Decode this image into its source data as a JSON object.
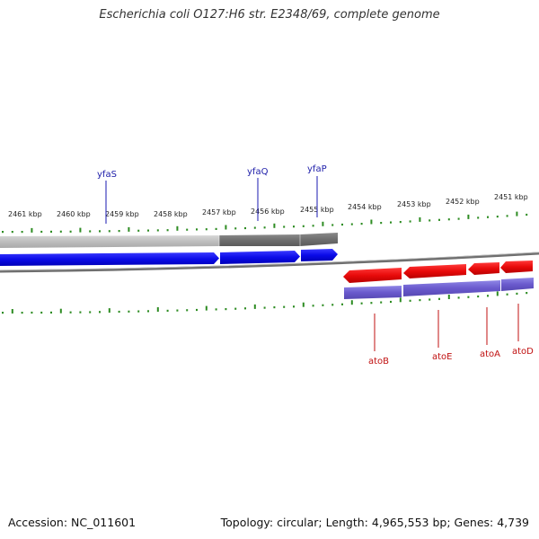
{
  "title": "Escherichia coli O127:H6 str. E2348/69, complete genome",
  "footer": {
    "accession": "Accession: NC_011601",
    "topology": "Topology: circular; Length: 4,965,553 bp; Genes: 4,739"
  },
  "map": {
    "topology": "circular",
    "colors": {
      "forward_gene": "#0b0be8",
      "reverse_gene": "#e80a0a",
      "forward_label": "#2020aa",
      "reverse_label": "#c01010",
      "tick": "#2d8c22",
      "backbone": "#777777",
      "orf_forward": "#8a8a8a",
      "orf_reverse": "#6a5acd"
    },
    "scale_labels": [
      "2461 kbp",
      "2460 kbp",
      "2459 kbp",
      "2458 kbp",
      "2457 kbp",
      "2456 kbp",
      "2455 kbp",
      "2454 kbp",
      "2453 kbp",
      "2452 kbp",
      "2451 kbp"
    ],
    "forward_genes": [
      {
        "name": "yfaS",
        "color": "#0b0be8"
      },
      {
        "name": "yfaQ",
        "color": "#0b0be8"
      },
      {
        "name": "yfaP",
        "color": "#0b0be8"
      }
    ],
    "reverse_genes": [
      {
        "name": "atoB",
        "color": "#e80a0a"
      },
      {
        "name": "atoE",
        "color": "#e80a0a"
      },
      {
        "name": "atoA",
        "color": "#e80a0a"
      },
      {
        "name": "atoD",
        "color": "#e80a0a"
      }
    ]
  }
}
